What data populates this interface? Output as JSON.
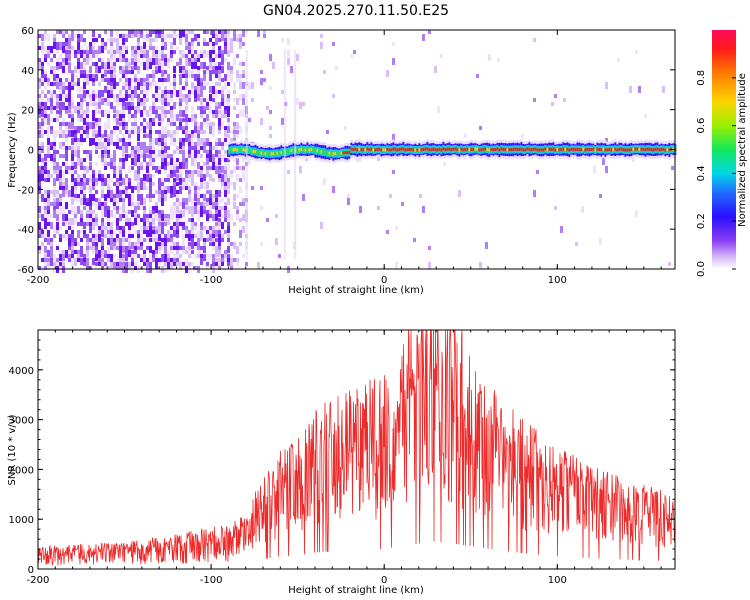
{
  "title": "GN04.2025.270.11.50.E25",
  "colors": {
    "snr_line": "#ee2b2b",
    "noise_purple": "#6a0ff0",
    "colormap": [
      "#ffffff",
      "#e6d2f7",
      "#b07ef0",
      "#7e2cf0",
      "#3a12ff",
      "#1e6bff",
      "#00d7e6",
      "#16e85a",
      "#a8f000",
      "#ffd000",
      "#ff5a00",
      "#ff0a3c"
    ]
  },
  "chart_data": [
    {
      "type": "heatmap",
      "xlabel": "Height of straight line (km)",
      "ylabel": "Frequency (Hz)",
      "xlim": [
        -200,
        168
      ],
      "ylim": [
        -60,
        60
      ],
      "xticks": [
        -200,
        -100,
        0,
        100
      ],
      "yticks": [
        -60,
        -40,
        -20,
        0,
        20,
        40,
        60
      ],
      "colorbar": {
        "label": "Normalized spectral amplitude",
        "ticks": [
          "0.0",
          "0.2",
          "0.4",
          "0.6",
          "0.8"
        ],
        "range": [
          0,
          1
        ]
      },
      "noise_region_km": [
        -200,
        -85
      ],
      "signal_band": {
        "start_km": -90,
        "end_km": 168,
        "center_hz": 0,
        "peak_start_km": -25
      }
    },
    {
      "type": "line",
      "xlabel": "Height of straight line (km)",
      "ylabel": "SNR (10 * v/v)",
      "xlim": [
        -200,
        168
      ],
      "ylim": [
        0,
        4800
      ],
      "xticks": [
        -200,
        -100,
        0,
        100
      ],
      "yticks": [
        0,
        1000,
        2000,
        3000,
        4000
      ],
      "envelope": {
        "x": [
          -200,
          -150,
          -110,
          -90,
          -80,
          -70,
          -60,
          -50,
          -40,
          -30,
          -20,
          -10,
          0,
          10,
          20,
          30,
          40,
          60,
          80,
          100,
          120,
          140,
          160,
          168
        ],
        "y": [
          300,
          350,
          500,
          600,
          800,
          1300,
          1700,
          1800,
          2200,
          2400,
          2500,
          2600,
          2700,
          3100,
          3400,
          3700,
          3400,
          2700,
          2100,
          1700,
          1450,
          1250,
          1100,
          1000
        ]
      }
    }
  ]
}
